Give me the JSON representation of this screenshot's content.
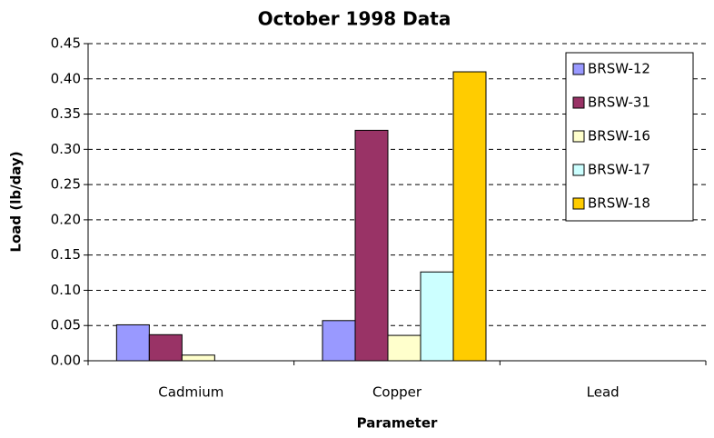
{
  "chart_data": {
    "type": "bar",
    "title": "October 1998 Data",
    "xlabel": "Parameter",
    "ylabel": "Load (lb/day)",
    "categories": [
      "Cadmium",
      "Copper",
      "Lead"
    ],
    "series": [
      {
        "name": "BRSW-12",
        "color": "#9999ff",
        "values": [
          0.051,
          0.057,
          0
        ]
      },
      {
        "name": "BRSW-31",
        "color": "#993366",
        "values": [
          0.037,
          0.327,
          0
        ]
      },
      {
        "name": "BRSW-16",
        "color": "#ffffcc",
        "values": [
          0.008,
          0.036,
          0
        ]
      },
      {
        "name": "BRSW-17",
        "color": "#ccffff",
        "values": [
          0,
          0.126,
          0
        ]
      },
      {
        "name": "BRSW-18",
        "color": "#ffcc00",
        "values": [
          0,
          0.41,
          0
        ]
      }
    ],
    "ylim": [
      0,
      0.45
    ],
    "yticks": [
      {
        "value": 0,
        "label": "0.00"
      },
      {
        "value": 0.05,
        "label": "0.05"
      },
      {
        "value": 0.1,
        "label": "0.10"
      },
      {
        "value": 0.15,
        "label": "0.15"
      },
      {
        "value": 0.2,
        "label": "0.20"
      },
      {
        "value": 0.25,
        "label": "0.25"
      },
      {
        "value": 0.3,
        "label": "0.30"
      },
      {
        "value": 0.35,
        "label": "0.35"
      },
      {
        "value": 0.4,
        "label": "0.40"
      },
      {
        "value": 0.45,
        "label": "0.45"
      }
    ],
    "grid": true,
    "legend": "upper right"
  }
}
